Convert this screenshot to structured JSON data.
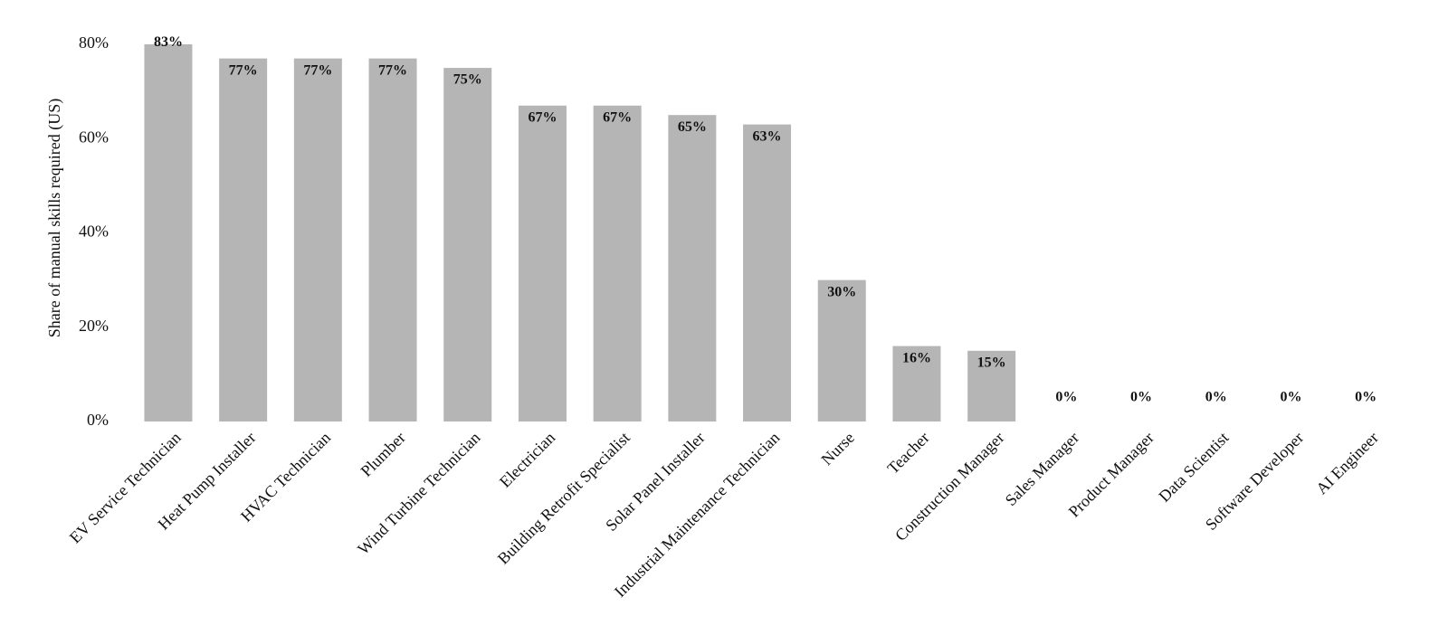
{
  "chart_data": {
    "type": "bar",
    "y_axis_label": "Share of manual skills required (US)",
    "categories": [
      "EV Service Technician",
      "Heat Pump Installer",
      "HVAC Technician",
      "Plumber",
      "Wind Turbine Technician",
      "Electrician",
      "Building Retrofit Specialist",
      "Solar Panel Installer",
      "Industrial Maintenance Technician",
      "Nurse",
      "Teacher",
      "Construction Manager",
      "Sales Manager",
      "Product Manager",
      "Data Scientist",
      "Software Developer",
      "AI Engineer"
    ],
    "values": [
      83,
      77,
      77,
      77,
      75,
      67,
      67,
      65,
      63,
      30,
      16,
      15,
      0,
      0,
      0,
      0,
      0
    ],
    "value_labels": [
      "83%",
      "77%",
      "77%",
      "77%",
      "75%",
      "67%",
      "67%",
      "65%",
      "63%",
      "30%",
      "16%",
      "15%",
      "0%",
      "0%",
      "0%",
      "0%",
      "0%"
    ],
    "color": "#b5b5b5",
    "ylim": [
      0,
      80
    ],
    "yticks": [
      {
        "value": 0,
        "label": "0%"
      },
      {
        "value": 20,
        "label": "20%"
      },
      {
        "value": 40,
        "label": "40%"
      },
      {
        "value": 60,
        "label": "60%"
      },
      {
        "value": 80,
        "label": "80%"
      }
    ],
    "grid": false
  }
}
